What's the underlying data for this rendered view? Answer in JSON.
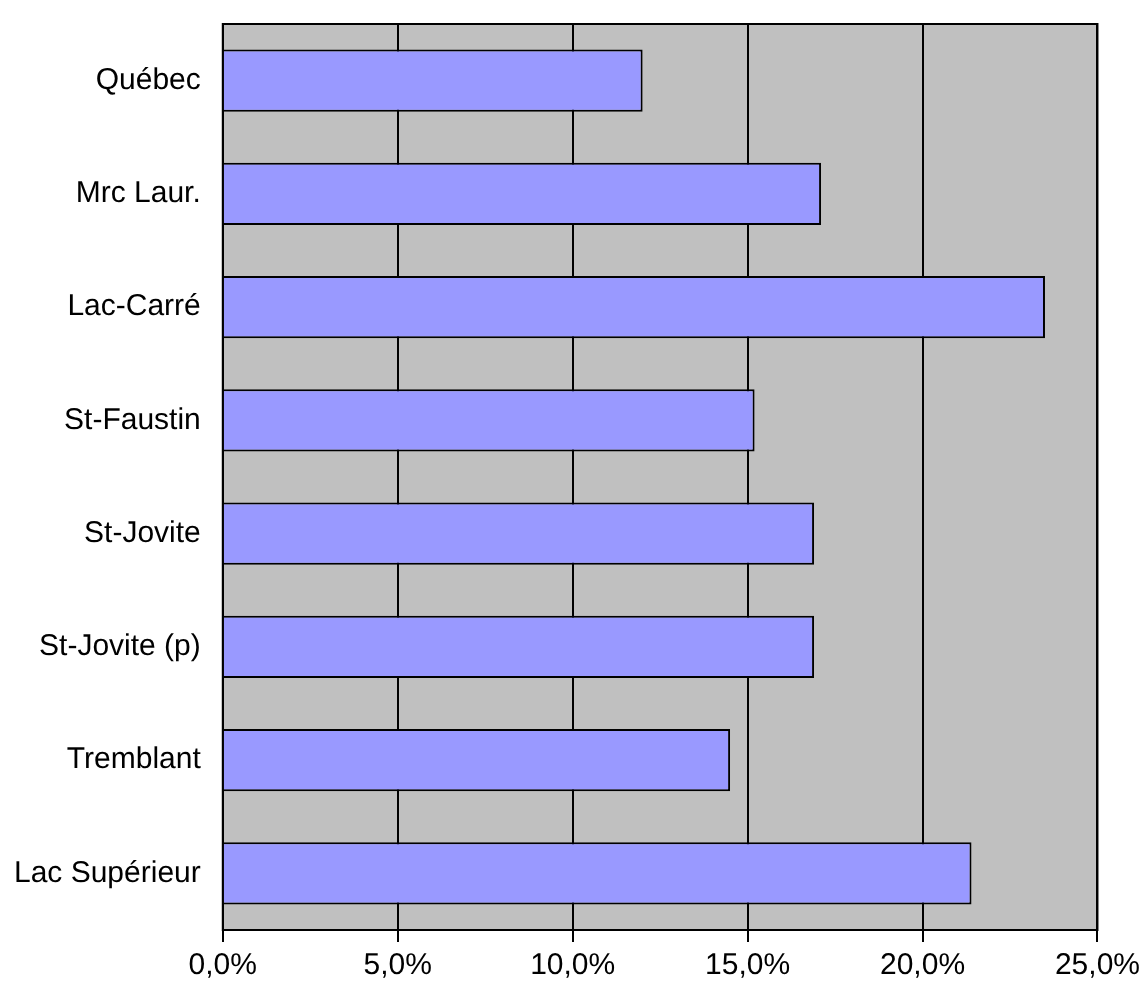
{
  "chart_data": {
    "type": "bar",
    "orientation": "horizontal",
    "categories": [
      "Québec",
      "Mrc Laur.",
      "Lac-Carré",
      "St-Faustin",
      "St-Jovite",
      "St-Jovite (p)",
      "Tremblant",
      "Lac Supérieur"
    ],
    "values": [
      12.0,
      17.1,
      23.5,
      15.2,
      16.9,
      16.9,
      14.5,
      21.4
    ],
    "color": "#9999ff",
    "xlim": [
      0,
      25
    ],
    "xticks": [
      {
        "value": 0,
        "label": "0,0%"
      },
      {
        "value": 5,
        "label": "5,0%"
      },
      {
        "value": 10,
        "label": "10,0%"
      },
      {
        "value": 15,
        "label": "15,0%"
      },
      {
        "value": 20,
        "label": "20,0%"
      },
      {
        "value": 25,
        "label": "25,0%"
      }
    ],
    "grid": "x",
    "legend": false
  }
}
